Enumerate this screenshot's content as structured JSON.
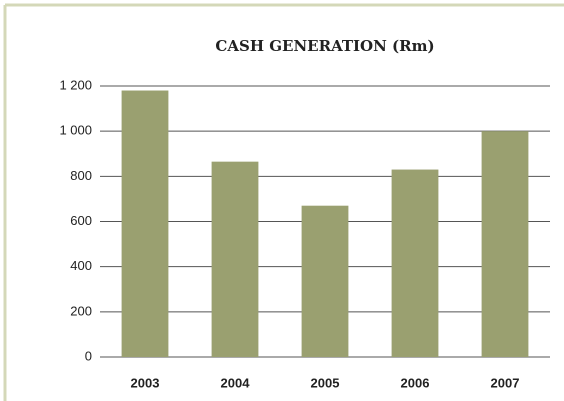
{
  "chart_data": {
    "type": "bar",
    "title": "CASH GENERATION (Rm)",
    "categories": [
      "2003",
      "2004",
      "2005",
      "2006",
      "2007"
    ],
    "values": [
      1180,
      865,
      670,
      830,
      1000
    ],
    "color": "#9aa070",
    "ylim": [
      0,
      1200
    ],
    "yticks": [
      0,
      200,
      400,
      600,
      800,
      {
        "value": 1000,
        "label": "1 000"
      },
      {
        "value": 1200,
        "label": "1 200"
      }
    ],
    "grid": true
  }
}
